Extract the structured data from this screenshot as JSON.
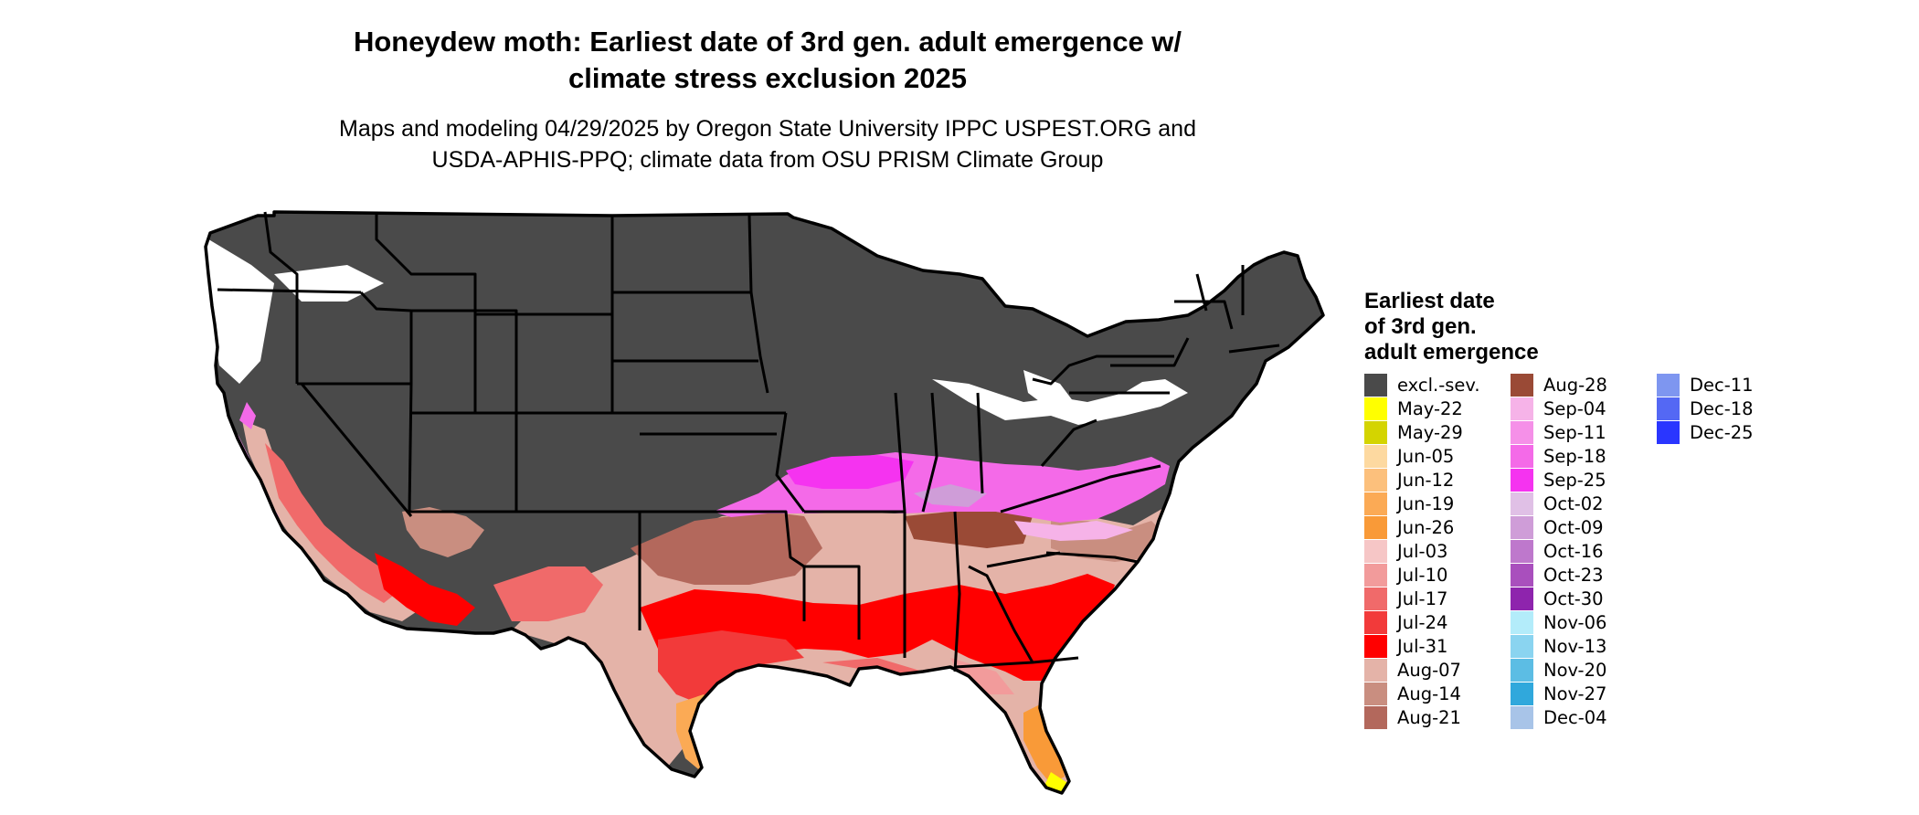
{
  "title_line1": "Honeydew moth: Earliest date of 3rd gen. adult emergence w/",
  "title_line2": "climate stress exclusion 2025",
  "subtitle_line1": "Maps and modeling 04/29/2025 by Oregon State University IPPC USPEST.ORG and",
  "subtitle_line2": "USDA-APHIS-PPQ; climate data from OSU PRISM Climate Group",
  "legend": {
    "title_line1": "Earliest date",
    "title_line2": "of 3rd gen.",
    "title_line3": "adult emergence",
    "items": [
      {
        "label": "excl.-sev.",
        "color": "#4a4a4a"
      },
      {
        "label": "May-22",
        "color": "#ffff00"
      },
      {
        "label": "May-29",
        "color": "#d4d400"
      },
      {
        "label": "Jun-05",
        "color": "#fdd9a0"
      },
      {
        "label": "Jun-12",
        "color": "#fcc07c"
      },
      {
        "label": "Jun-19",
        "color": "#fbaa55"
      },
      {
        "label": "Jun-26",
        "color": "#f99a38"
      },
      {
        "label": "Jul-03",
        "color": "#f6c6c6"
      },
      {
        "label": "Jul-10",
        "color": "#f29b9b"
      },
      {
        "label": "Jul-17",
        "color": "#f06a6a"
      },
      {
        "label": "Jul-24",
        "color": "#f23a3a"
      },
      {
        "label": "Jul-31",
        "color": "#ff0000"
      },
      {
        "label": "Aug-07",
        "color": "#e4b3a8"
      },
      {
        "label": "Aug-14",
        "color": "#c98e80"
      },
      {
        "label": "Aug-21",
        "color": "#b3685c"
      },
      {
        "label": "Aug-28",
        "color": "#9a4a36"
      },
      {
        "label": "Sep-04",
        "color": "#f6b3e8"
      },
      {
        "label": "Sep-11",
        "color": "#f590e8"
      },
      {
        "label": "Sep-18",
        "color": "#f46ae8"
      },
      {
        "label": "Sep-25",
        "color": "#f533f0"
      },
      {
        "label": "Oct-02",
        "color": "#e0c0e6"
      },
      {
        "label": "Oct-09",
        "color": "#cf9dd8"
      },
      {
        "label": "Oct-16",
        "color": "#be78cc"
      },
      {
        "label": "Oct-23",
        "color": "#a94fbd"
      },
      {
        "label": "Oct-30",
        "color": "#8e24ad"
      },
      {
        "label": "Nov-06",
        "color": "#b3ecfa"
      },
      {
        "label": "Nov-13",
        "color": "#8ad4f0"
      },
      {
        "label": "Nov-20",
        "color": "#5cbde4"
      },
      {
        "label": "Nov-27",
        "color": "#30a8dc"
      },
      {
        "label": "Dec-04",
        "color": "#a8c4e8"
      },
      {
        "label": "Dec-11",
        "color": "#7e96f0"
      },
      {
        "label": "Dec-18",
        "color": "#5468f4"
      },
      {
        "label": "Dec-25",
        "color": "#2a36ff"
      }
    ]
  }
}
